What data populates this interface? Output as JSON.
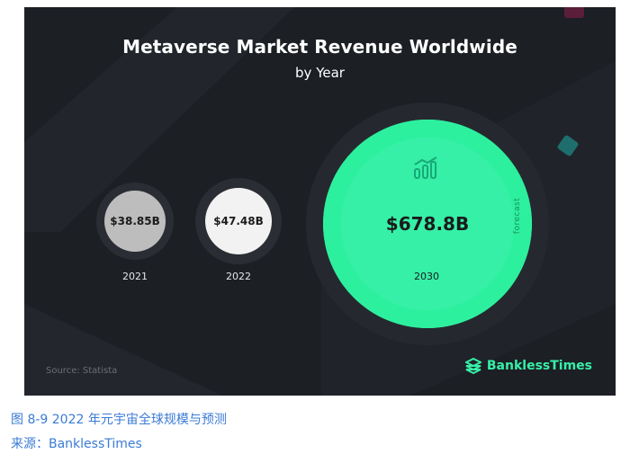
{
  "chart_data": {
    "type": "bubble",
    "title": "Metaverse Market Revenue Worldwide",
    "subtitle": "by Year",
    "categories": [
      "2021",
      "2022",
      "2030"
    ],
    "values": [
      38.85,
      47.48,
      678.8
    ],
    "value_labels": [
      "$38.85B",
      "$47.48B",
      "$678.8B"
    ],
    "forecast_label": "forecast",
    "colors": [
      "#bdbdbd",
      "#f2f2f2",
      "#36f0a8"
    ]
  },
  "source": "Source: Statista",
  "brand": "BanklessTimes",
  "caption": {
    "figure": "图 8-9 2022 年元宇宙全球规模与预测",
    "source": "来源：BanklessTimes"
  }
}
